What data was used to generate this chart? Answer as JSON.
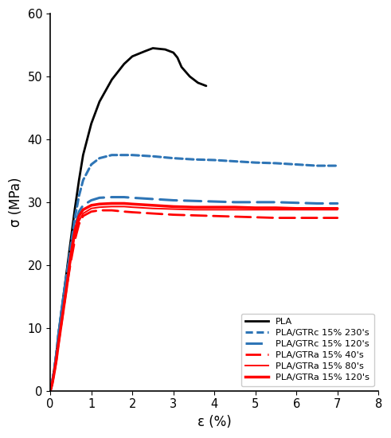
{
  "title": "",
  "xlabel": "ε (%)",
  "ylabel": "σ (MPa)",
  "xlim": [
    0,
    8
  ],
  "ylim": [
    0,
    60
  ],
  "xticks": [
    0,
    1,
    2,
    3,
    4,
    5,
    6,
    7,
    8
  ],
  "yticks": [
    0,
    10,
    20,
    30,
    40,
    50,
    60
  ],
  "background_color": "#ffffff",
  "curves": {
    "PLA": {
      "color": "#000000",
      "linestyle": "solid",
      "linewidth": 2.0,
      "x": [
        0,
        0.02,
        0.05,
        0.1,
        0.15,
        0.2,
        0.3,
        0.4,
        0.5,
        0.6,
        0.7,
        0.8,
        1.0,
        1.2,
        1.5,
        1.8,
        2.0,
        2.3,
        2.5,
        2.8,
        3.0,
        3.1,
        3.2,
        3.4,
        3.6,
        3.8
      ],
      "y": [
        0,
        0.5,
        1.5,
        3.5,
        6.0,
        9.0,
        14.0,
        19.0,
        24.0,
        29.0,
        33.5,
        37.5,
        42.5,
        46.0,
        49.5,
        52.0,
        53.2,
        54.0,
        54.5,
        54.3,
        53.8,
        53.0,
        51.5,
        50.0,
        49.0,
        48.5
      ]
    },
    "PLA/GTRc_230": {
      "color": "#2E75B6",
      "linestyle": "densely_dashed",
      "linewidth": 2.2,
      "x": [
        0,
        0.02,
        0.05,
        0.1,
        0.15,
        0.2,
        0.3,
        0.4,
        0.5,
        0.6,
        0.7,
        0.8,
        1.0,
        1.2,
        1.5,
        1.8,
        2.0,
        2.5,
        3.0,
        3.5,
        4.0,
        4.5,
        5.0,
        5.5,
        6.0,
        6.5,
        7.0
      ],
      "y": [
        0,
        0.5,
        1.5,
        3.5,
        6.0,
        9.0,
        14.0,
        18.5,
        23.0,
        27.5,
        31.0,
        33.5,
        36.0,
        37.0,
        37.5,
        37.5,
        37.5,
        37.3,
        37.0,
        36.8,
        36.7,
        36.5,
        36.3,
        36.2,
        36.0,
        35.8,
        35.8
      ]
    },
    "PLA/GTRc_120": {
      "color": "#2E75B6",
      "linestyle": "loosely_dashed",
      "linewidth": 2.2,
      "x": [
        0,
        0.02,
        0.05,
        0.1,
        0.15,
        0.2,
        0.3,
        0.4,
        0.5,
        0.6,
        0.7,
        0.8,
        1.0,
        1.2,
        1.5,
        1.8,
        2.0,
        2.5,
        3.0,
        3.5,
        4.0,
        4.5,
        5.0,
        5.5,
        6.0,
        6.5,
        7.0
      ],
      "y": [
        0,
        0.5,
        1.5,
        3.5,
        6.0,
        9.0,
        14.0,
        18.5,
        22.5,
        26.0,
        28.5,
        29.5,
        30.3,
        30.7,
        30.8,
        30.8,
        30.7,
        30.5,
        30.3,
        30.2,
        30.1,
        30.0,
        30.0,
        30.0,
        29.9,
        29.8,
        29.8
      ]
    },
    "PLA/GTRa_40": {
      "color": "#FF0000",
      "linestyle": "loosely_dashed",
      "linewidth": 2.0,
      "x": [
        0,
        0.02,
        0.05,
        0.1,
        0.15,
        0.2,
        0.3,
        0.4,
        0.5,
        0.6,
        0.7,
        0.8,
        1.0,
        1.2,
        1.5,
        1.8,
        2.0,
        2.5,
        3.0,
        3.5,
        4.0,
        4.5,
        5.0,
        5.5,
        6.0,
        6.5,
        7.0
      ],
      "y": [
        0,
        0.4,
        1.2,
        3.0,
        5.0,
        7.5,
        12.0,
        16.5,
        20.5,
        24.0,
        26.5,
        27.8,
        28.5,
        28.7,
        28.7,
        28.5,
        28.4,
        28.2,
        28.0,
        27.9,
        27.8,
        27.7,
        27.6,
        27.5,
        27.5,
        27.5,
        27.5
      ]
    },
    "PLA/GTRa_80": {
      "color": "#FF0000",
      "linestyle": "solid",
      "linewidth": 1.4,
      "x": [
        0,
        0.02,
        0.05,
        0.1,
        0.15,
        0.2,
        0.3,
        0.4,
        0.5,
        0.6,
        0.7,
        0.8,
        1.0,
        1.2,
        1.5,
        1.8,
        2.0,
        2.5,
        3.0,
        3.5,
        4.0,
        4.5,
        5.0,
        5.5,
        6.0,
        6.5,
        7.0
      ],
      "y": [
        0,
        0.4,
        1.2,
        3.0,
        5.0,
        7.5,
        12.0,
        16.5,
        21.0,
        24.8,
        27.0,
        28.2,
        29.0,
        29.2,
        29.3,
        29.3,
        29.2,
        29.0,
        28.9,
        28.8,
        28.8,
        28.8,
        28.8,
        28.8,
        28.8,
        28.8,
        28.8
      ]
    },
    "PLA/GTRa_120": {
      "color": "#FF0000",
      "linestyle": "solid",
      "linewidth": 2.5,
      "x": [
        0,
        0.02,
        0.05,
        0.1,
        0.15,
        0.2,
        0.3,
        0.4,
        0.5,
        0.6,
        0.7,
        0.8,
        1.0,
        1.2,
        1.5,
        1.8,
        2.0,
        2.5,
        3.0,
        3.5,
        4.0,
        4.5,
        5.0,
        5.5,
        6.0,
        6.5,
        7.0
      ],
      "y": [
        0,
        0.4,
        1.2,
        3.0,
        5.0,
        7.5,
        12.0,
        16.5,
        21.5,
        25.5,
        27.8,
        28.8,
        29.5,
        29.7,
        29.8,
        29.8,
        29.7,
        29.5,
        29.3,
        29.2,
        29.2,
        29.2,
        29.1,
        29.1,
        29.0,
        29.0,
        29.0
      ]
    }
  },
  "legend_entries": [
    {
      "label": "PLA",
      "color": "#000000",
      "linestyle": "solid",
      "linewidth": 2.0
    },
    {
      "label": "PLA/GTRc 15% 230's",
      "color": "#2E75B6",
      "linestyle": "densely_dashed",
      "linewidth": 2.2
    },
    {
      "label": "PLA/GTRc 15% 120's",
      "color": "#2E75B6",
      "linestyle": "loosely_dashed",
      "linewidth": 2.2
    },
    {
      "label": "PLA/GTRa 15% 40's",
      "color": "#FF0000",
      "linestyle": "loosely_dashed",
      "linewidth": 2.0
    },
    {
      "label": "PLA/GTRa 15% 80's",
      "color": "#FF0000",
      "linestyle": "solid",
      "linewidth": 1.4
    },
    {
      "label": "PLA/GTRa 15% 120's",
      "color": "#FF0000",
      "linestyle": "solid",
      "linewidth": 2.5
    }
  ]
}
